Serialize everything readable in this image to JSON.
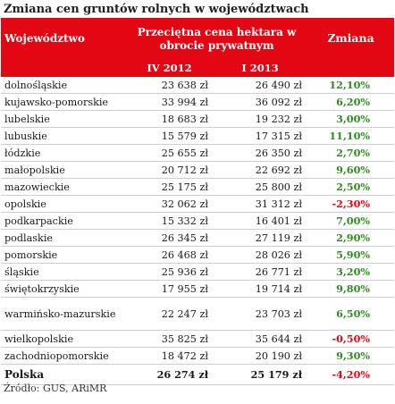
{
  "title": "Zmiana cen gruntów rolnych w województwach",
  "header": {
    "col_region": "Województwo",
    "col_price": "Przeciętna cena hektara w obrocie prywatnym",
    "col_change": "Zmiana",
    "sub_q1": "IV 2012",
    "sub_q2": "I 2013"
  },
  "rows": [
    {
      "name": "dolnośląskie",
      "v2012": "23 638 zł",
      "v2013": "26 490 zł",
      "change": "12,10%",
      "sign": "pos"
    },
    {
      "name": "kujawsko-pomorskie",
      "v2012": "33 994 zł",
      "v2013": "36 092 zł",
      "change": "6,20%",
      "sign": "pos"
    },
    {
      "name": "lubelskie",
      "v2012": "18 683 zł",
      "v2013": "19 232 zł",
      "change": "3,00%",
      "sign": "pos"
    },
    {
      "name": "lubuskie",
      "v2012": "15 579 zł",
      "v2013": "17 315 zł",
      "change": "11,10%",
      "sign": "pos"
    },
    {
      "name": "łódzkie",
      "v2012": "25 655 zł",
      "v2013": "26 350 zł",
      "change": "2,70%",
      "sign": "pos"
    },
    {
      "name": "małopolskie",
      "v2012": "20 712 zł",
      "v2013": "22 692 zł",
      "change": "9,60%",
      "sign": "pos"
    },
    {
      "name": "mazowieckie",
      "v2012": "25 175 zł",
      "v2013": "25 800 zł",
      "change": "2,50%",
      "sign": "pos"
    },
    {
      "name": "opolskie",
      "v2012": "32 062 zł",
      "v2013": "31 312 zł",
      "change": "-2,30%",
      "sign": "neg"
    },
    {
      "name": "podkarpackie",
      "v2012": "15 332 zł",
      "v2013": "16 401 zł",
      "change": "7,00%",
      "sign": "pos"
    },
    {
      "name": "podlaskie",
      "v2012": "26 345 zł",
      "v2013": "27 119 zł",
      "change": "2,90%",
      "sign": "pos"
    },
    {
      "name": "pomorskie",
      "v2012": "26 468 zł",
      "v2013": "28 026 zł",
      "change": "5,90%",
      "sign": "pos"
    },
    {
      "name": "śląskie",
      "v2012": "25 936 zł",
      "v2013": "26 771 zł",
      "change": "3,20%",
      "sign": "pos"
    },
    {
      "name": "świętokrzyskie",
      "v2012": "17 955 zł",
      "v2013": "19 714 zł",
      "change": "9,80%",
      "sign": "pos"
    },
    {
      "name": "warmińsko-mazurskie",
      "v2012": "22 247 zł",
      "v2013": "23 703 zł",
      "change": "6,50%",
      "sign": "pos"
    },
    {
      "name": "wielkopolskie",
      "v2012": "35 825 zł",
      "v2013": "35 644 zł",
      "change": "-0,50%",
      "sign": "neg"
    },
    {
      "name": "zachodniopomorskie",
      "v2012": "18 472 zł",
      "v2013": "20 190 zł",
      "change": "9,30%",
      "sign": "pos"
    }
  ],
  "total": {
    "name": "Polska",
    "v2012": "26 274 zł",
    "v2013": "25 179 zł",
    "change": "-4,20%",
    "sign": "neg"
  },
  "source": "Źródło: GUS, ARiMR",
  "colors": {
    "header_bg": "#e30613",
    "positive": "#2e8b1e",
    "negative": "#e30613"
  }
}
